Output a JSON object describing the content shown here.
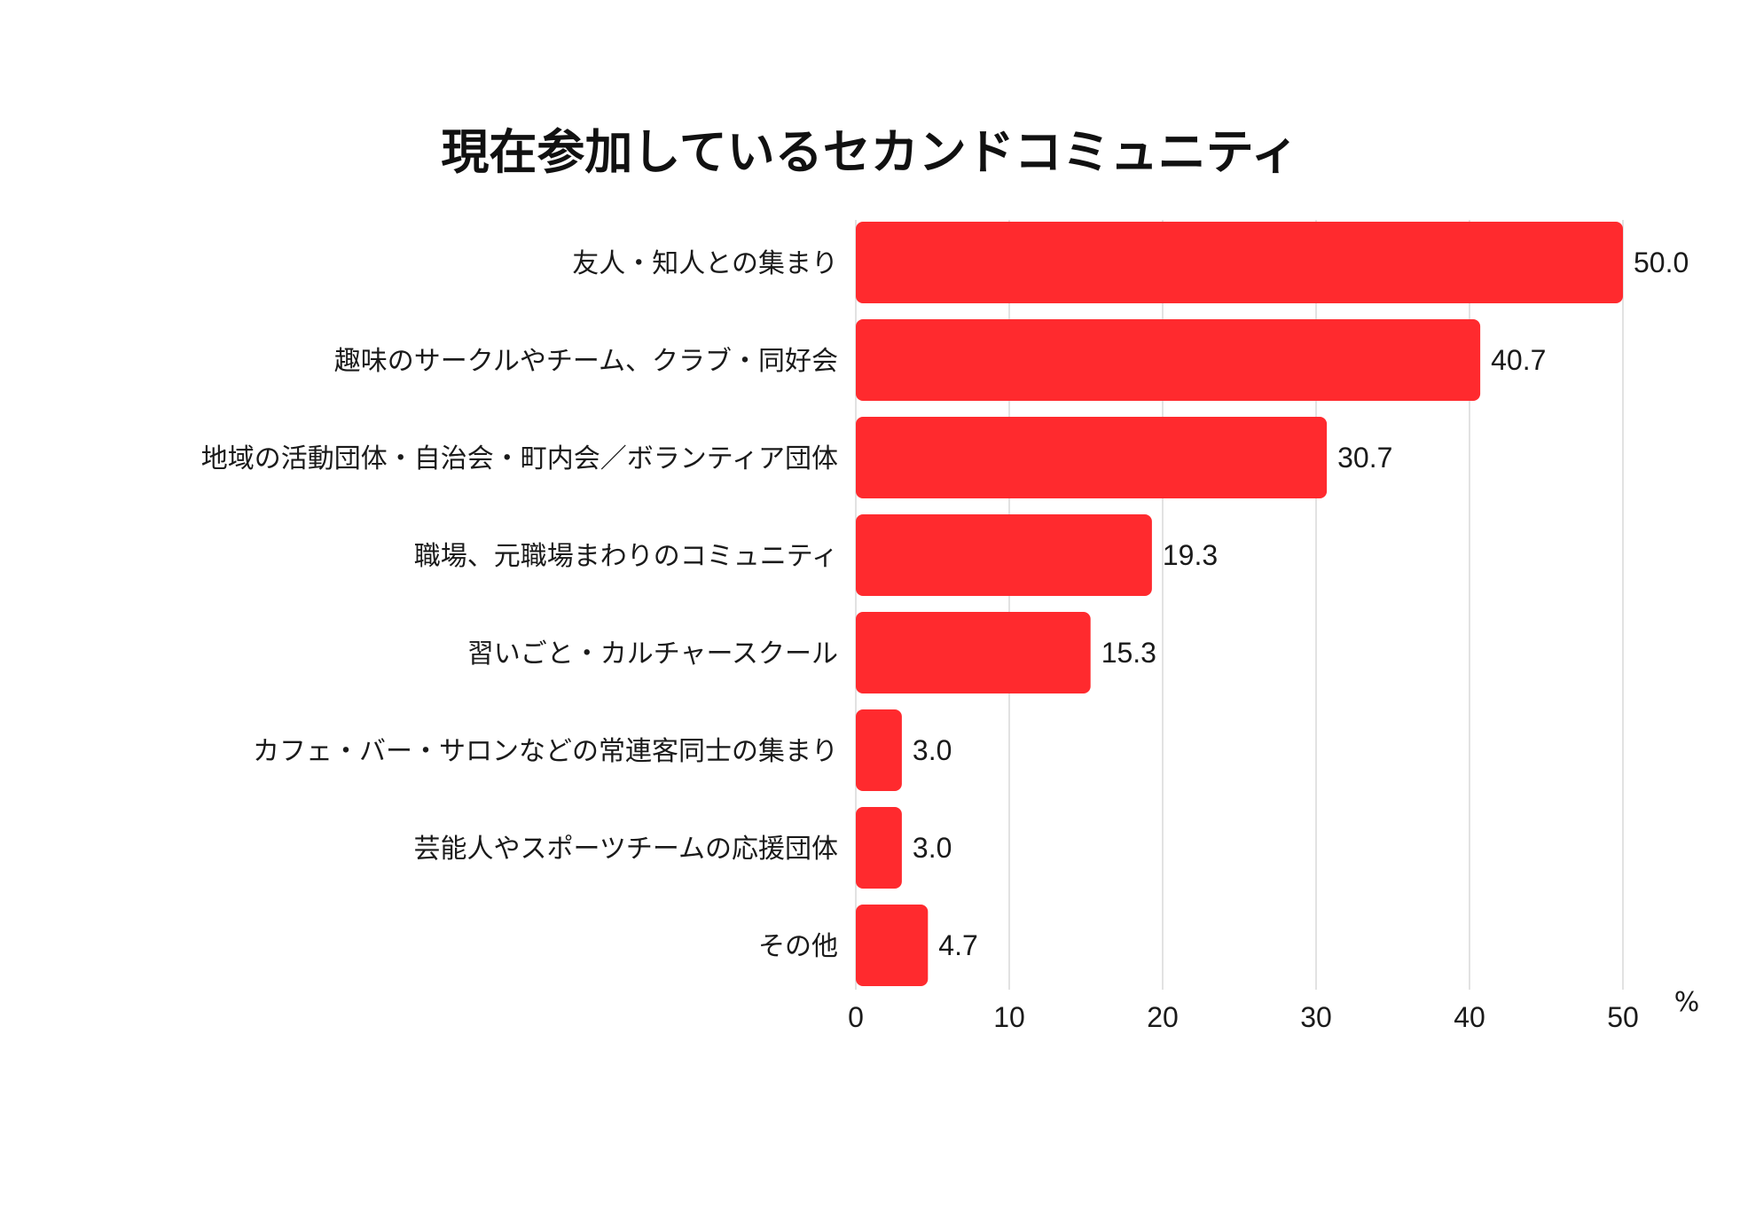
{
  "chart_data": {
    "type": "bar",
    "orientation": "horizontal",
    "title": "現在参加しているセカンドコミュニティ",
    "categories": [
      "友人・知人との集まり",
      "趣味のサークルやチーム、クラブ・同好会",
      "地域の活動団体・自治会・町内会／ボランティア団体",
      "職場、元職場まわりのコミュニティ",
      "習いごと・カルチャースクール",
      "カフェ・バー・サロンなどの常連客同士の集まり",
      "芸能人やスポーツチームの応援団体",
      "その他"
    ],
    "values": [
      50.0,
      40.7,
      30.7,
      19.3,
      15.3,
      3.0,
      3.0,
      4.7
    ],
    "value_labels": [
      "50.0",
      "40.7",
      "30.7",
      "19.3",
      "15.3",
      "3.0",
      "3.0",
      "4.7"
    ],
    "x_ticks": [
      "0",
      "10",
      "20",
      "30",
      "40",
      "50"
    ],
    "xlim": [
      0,
      50
    ],
    "unit": "%",
    "grid": "vertical",
    "bar_color": "#ff2a2e"
  }
}
